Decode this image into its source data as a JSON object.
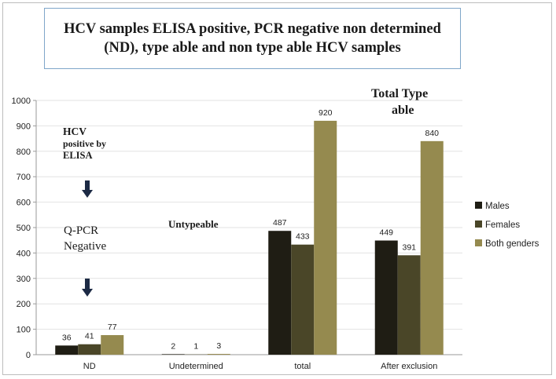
{
  "chart_data": {
    "type": "bar",
    "title": "HCV samples ELISA positive, PCR negative non determined (ND), type able and non type able HCV samples",
    "categories": [
      "ND",
      "Undetermined",
      "total",
      "After exclusion"
    ],
    "series": [
      {
        "name": "Males",
        "values": [
          36,
          2,
          487,
          449
        ],
        "color": "#1f1d14"
      },
      {
        "name": "Females",
        "values": [
          41,
          1,
          433,
          391
        ],
        "color": "#4a4628"
      },
      {
        "name": "Both genders",
        "values": [
          77,
          3,
          920,
          840
        ],
        "color": "#958a4f"
      }
    ],
    "ylim": [
      0,
      1000
    ],
    "yticks": [
      0,
      100,
      200,
      300,
      400,
      500,
      600,
      700,
      800,
      900,
      1000
    ],
    "xlabel": "",
    "ylabel": "",
    "legend_position": "right",
    "annotations": {
      "hcv_elisa": [
        "HCV",
        "positive by",
        "ELISA"
      ],
      "qpcr": [
        "Q-PCR",
        "Negative"
      ],
      "untypeable": "Untypeable",
      "total_typeable": [
        "Total Type",
        "able"
      ]
    },
    "annotation_color": "#1a1a1a",
    "arrow_color": "#1c2a44"
  }
}
